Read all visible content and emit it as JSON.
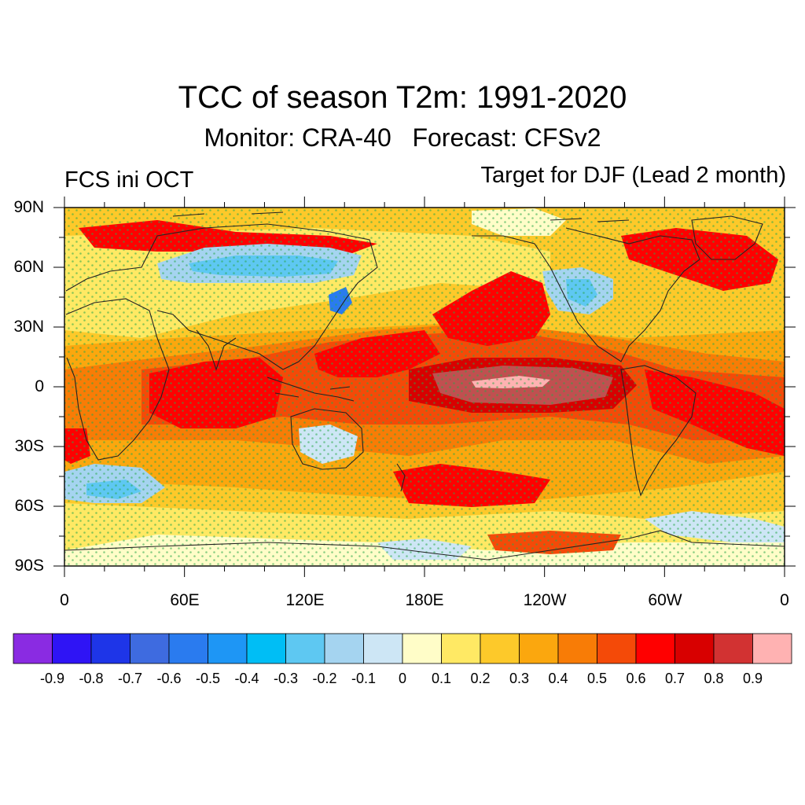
{
  "header": {
    "title": "TCC of season T2m: 1991-2020",
    "subtitle": "Monitor: CRA-40   Forecast: CFSv2",
    "left_label": "FCS ini OCT",
    "right_label": "Target for DJF (Lead 2 month)"
  },
  "map": {
    "lat_labels": [
      "90N",
      "60N",
      "30N",
      "0",
      "30S",
      "60S",
      "90S"
    ],
    "lon_labels": [
      "0",
      "60E",
      "120E",
      "180E",
      "120W",
      "60W",
      "0"
    ],
    "stipple_color": "#2aa84a",
    "coastline_color": "#222222"
  },
  "colorbar": {
    "labels": [
      "-0.9",
      "-0.8",
      "-0.7",
      "-0.6",
      "-0.5",
      "-0.4",
      "-0.3",
      "-0.2",
      "-0.1",
      "0",
      "0.1",
      "0.2",
      "0.3",
      "0.4",
      "0.5",
      "0.6",
      "0.7",
      "0.8",
      "0.9"
    ],
    "colors": [
      "#8a2be2",
      "#2f14f5",
      "#1e35e8",
      "#3e6be0",
      "#2a7bef",
      "#1e96f5",
      "#00bef5",
      "#5ec8f2",
      "#a5d4f0",
      "#cde6f5",
      "#fffdc8",
      "#ffe964",
      "#fdc92a",
      "#fba70e",
      "#f87c06",
      "#f44a08",
      "#ff0000",
      "#d80000",
      "#d23232",
      "#ffb2b2"
    ]
  }
}
